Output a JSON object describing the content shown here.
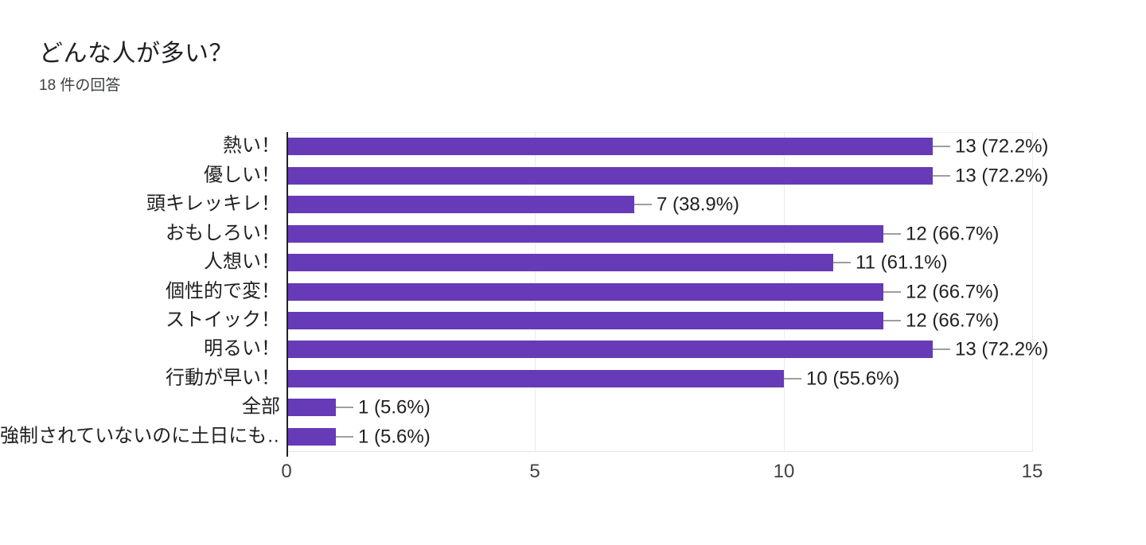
{
  "header": {
    "title": "どんな人が多い？",
    "subtitle": "18 件の回答"
  },
  "chart_data": {
    "type": "bar",
    "orientation": "horizontal",
    "title": "どんな人が多い？",
    "subtitle": "18 件の回答",
    "total_responses": 18,
    "categories": [
      "熱い！",
      "優しい！",
      "頭キレッキレ！",
      "おもしろい！",
      "人想い！",
      "個性的で変！",
      "ストイック！",
      "明るい！",
      "行動が早い！",
      "全部",
      "強制されていないのに土日にも…"
    ],
    "values": [
      13,
      13,
      7,
      12,
      11,
      12,
      12,
      13,
      10,
      1,
      1
    ],
    "percentages": [
      72.2,
      72.2,
      38.9,
      66.7,
      61.1,
      66.7,
      66.7,
      72.2,
      55.6,
      5.6,
      5.6
    ],
    "value_labels": [
      "13 (72.2%)",
      "13 (72.2%)",
      "7 (38.9%)",
      "12 (66.7%)",
      "11 (61.1%)",
      "12 (66.7%)",
      "12 (66.7%)",
      "13 (72.2%)",
      "10 (55.6%)",
      "1 (5.6%)",
      "1 (5.6%)"
    ],
    "xlabel": "",
    "ylabel": "",
    "xlim": [
      0,
      15
    ],
    "xticks": [
      "0",
      "5",
      "10",
      "15"
    ],
    "grid": "vertical-light",
    "legend_position": "none",
    "colors": {
      "bar": "#673ab7",
      "leader_line": "#9e9e9e",
      "gridline": "#ebebeb",
      "axis_line": "#212121",
      "label_text": "#212121",
      "tick_text": "#424242",
      "background": "#ffffff"
    }
  }
}
